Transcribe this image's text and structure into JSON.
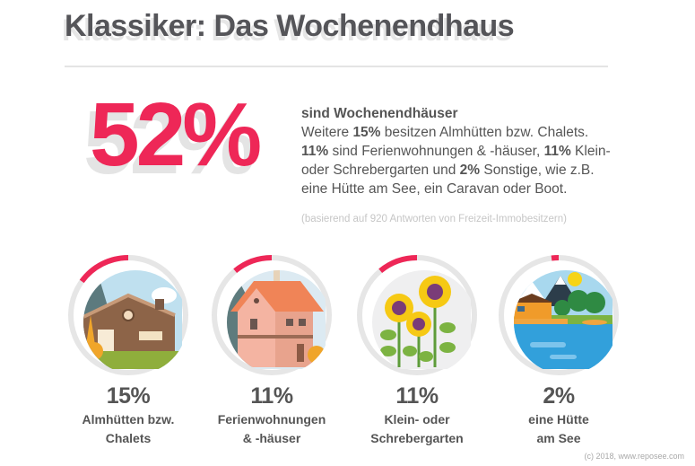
{
  "title": "Klassiker: Das Wochenendhaus",
  "headline": {
    "value": "52%",
    "subtitle": "sind Wochenendhäuser",
    "lines": [
      {
        "parts": [
          {
            "t": "Weitere ",
            "b": false
          },
          {
            "t": "15%",
            "b": true
          },
          {
            "t": " besitzen Almhütten bzw. Chalets.",
            "b": false
          }
        ]
      },
      {
        "parts": [
          {
            "t": "11%",
            "b": true
          },
          {
            "t": " sind Ferienwohnungen & -häuser, ",
            "b": false
          },
          {
            "t": "11%",
            "b": true
          },
          {
            "t": " Klein-",
            "b": false
          }
        ]
      },
      {
        "parts": [
          {
            "t": "oder Schrebergarten und ",
            "b": false
          },
          {
            "t": "2%",
            "b": true
          },
          {
            "t": " Sonstige, wie z.B.",
            "b": false
          }
        ]
      },
      {
        "parts": [
          {
            "t": "eine Hütte am See, ein Caravan oder Boot.",
            "b": false
          }
        ]
      }
    ],
    "note": "(basierend auf 920 Antworten von Freizeit-Immobesitzern)"
  },
  "categories": [
    {
      "percent_label": "15%",
      "value": 0.15,
      "label_1": "Almhütten bzw.",
      "label_2": "Chalets",
      "icon": "chalet-icon"
    },
    {
      "percent_label": "11%",
      "value": 0.11,
      "label_1": "Ferienwohnungen",
      "label_2": "& -häuser",
      "icon": "holiday-house-icon"
    },
    {
      "percent_label": "11%",
      "value": 0.11,
      "label_1": "Klein- oder",
      "label_2": "Schrebergarten",
      "icon": "sunflower-garden-icon"
    },
    {
      "percent_label": "2%",
      "value": 0.02,
      "label_1": "eine Hütte",
      "label_2": "am See",
      "icon": "lake-hut-icon"
    }
  ],
  "colors": {
    "accent": "#ee2757",
    "text": "#555559",
    "ring_track": "#e6e6e6"
  },
  "copyright": "(c) 2018, www.reposee.com"
}
